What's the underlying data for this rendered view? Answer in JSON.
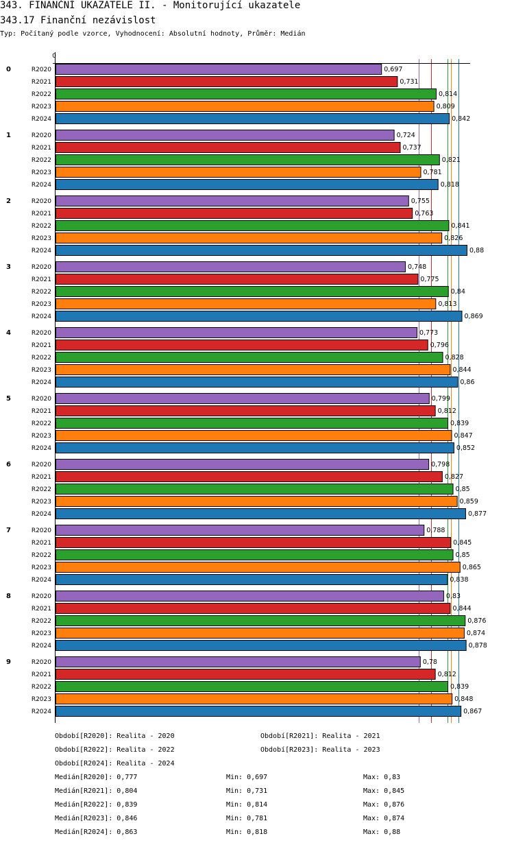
{
  "header": {
    "title": "343. FINANČNÍ UKAZATELE II. - Monitorující ukazatele",
    "subtitle": "343.17 Finanční nezávislost",
    "info": "Typ: Počítaný podle vzorce, Vyhodnocení: Absolutní hodnoty, Průměr: Medián"
  },
  "chart_data": {
    "type": "bar",
    "orientation": "horizontal",
    "axis_zero_label": "0",
    "xlim": [
      0,
      0.88
    ],
    "groups": [
      "0",
      "1",
      "2",
      "3",
      "4",
      "5",
      "6",
      "7",
      "8",
      "9"
    ],
    "series": [
      {
        "name": "R2020",
        "color": "#9467bd",
        "median": 0.777,
        "values": [
          0.697,
          0.724,
          0.755,
          0.748,
          0.773,
          0.799,
          0.798,
          0.788,
          0.83,
          0.78
        ],
        "labels": [
          "0,697",
          "0,724",
          "0,755",
          "0,748",
          "0,773",
          "0,799",
          "0,798",
          "0,788",
          "0,83",
          "0,78"
        ]
      },
      {
        "name": "R2021",
        "color": "#d62728",
        "median": 0.804,
        "values": [
          0.731,
          0.737,
          0.763,
          0.775,
          0.796,
          0.812,
          0.827,
          0.845,
          0.844,
          0.812
        ],
        "labels": [
          "0,731",
          "0,737",
          "0,763",
          "0,775",
          "0,796",
          "0,812",
          "0,827",
          "0,845",
          "0,844",
          "0,812"
        ]
      },
      {
        "name": "R2022",
        "color": "#2ca02c",
        "median": 0.839,
        "values": [
          0.814,
          0.821,
          0.841,
          0.84,
          0.828,
          0.839,
          0.85,
          0.85,
          0.876,
          0.839
        ],
        "labels": [
          "0,814",
          "0,821",
          "0,841",
          "0,84",
          "0,828",
          "0,839",
          "0,85",
          "0,85",
          "0,876",
          "0,839"
        ]
      },
      {
        "name": "R2023",
        "color": "#ff7f0e",
        "median": 0.846,
        "values": [
          0.809,
          0.781,
          0.826,
          0.813,
          0.844,
          0.847,
          0.859,
          0.865,
          0.874,
          0.848
        ],
        "labels": [
          "0,809",
          "0,781",
          "0,826",
          "0,813",
          "0,844",
          "0,847",
          "0,859",
          "0,865",
          "0,874",
          "0,848"
        ]
      },
      {
        "name": "R2024",
        "color": "#1f77b4",
        "median": 0.863,
        "values": [
          0.842,
          0.818,
          0.88,
          0.869,
          0.86,
          0.852,
          0.877,
          0.838,
          0.878,
          0.867
        ],
        "labels": [
          "0,842",
          "0,818",
          "0,88",
          "0,869",
          "0,86",
          "0,852",
          "0,877",
          "0,838",
          "0,878",
          "0,867"
        ]
      }
    ]
  },
  "legend": {
    "periods": [
      "Období[R2020]: Realita - 2020",
      "Období[R2021]: Realita - 2021",
      "Období[R2022]: Realita - 2022",
      "Období[R2023]: Realita - 2023",
      "Období[R2024]: Realita - 2024"
    ],
    "stats": [
      {
        "median": "Medián[R2020]: 0,777",
        "min": "Min: 0,697",
        "max": "Max: 0,83"
      },
      {
        "median": "Medián[R2021]: 0,804",
        "min": "Min: 0,731",
        "max": "Max: 0,845"
      },
      {
        "median": "Medián[R2022]: 0,839",
        "min": "Min: 0,814",
        "max": "Max: 0,876"
      },
      {
        "median": "Medián[R2023]: 0,846",
        "min": "Min: 0,781",
        "max": "Max: 0,874"
      },
      {
        "median": "Medián[R2024]: 0,863",
        "min": "Min: 0,818",
        "max": "Max: 0,88"
      }
    ]
  }
}
